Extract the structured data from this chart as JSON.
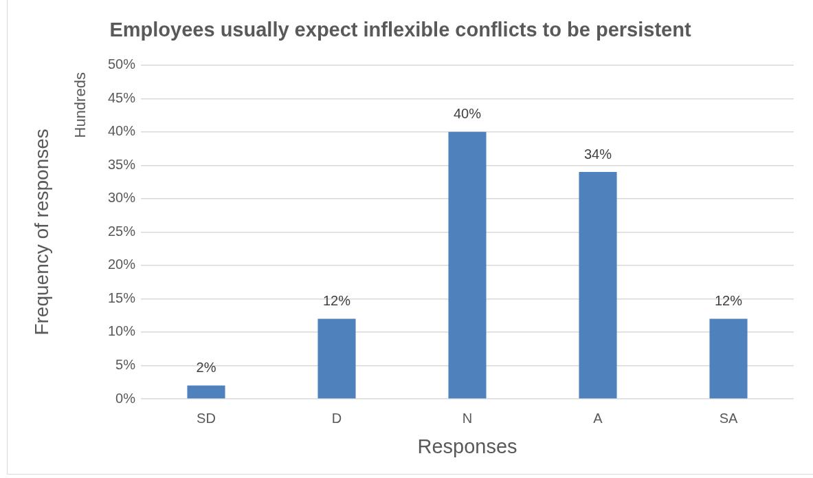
{
  "chart_data": {
    "type": "bar",
    "title": "Employees usually expect inflexible conflicts to be persistent",
    "xlabel": "Responses",
    "ylabel": "Frequency of responses",
    "annotations": [
      "Hundreds"
    ],
    "categories": [
      "SD",
      "D",
      "N",
      "A",
      "SA"
    ],
    "values": [
      2,
      12,
      40,
      34,
      12
    ],
    "color": "#4f81bd",
    "value_labels": [
      "2%",
      "12%",
      "40%",
      "34%",
      "12%"
    ],
    "ylim": [
      0,
      50
    ],
    "yticks": [
      {
        "value": 0,
        "label": "0%"
      },
      {
        "value": 5,
        "label": "5%"
      },
      {
        "value": 10,
        "label": "10%"
      },
      {
        "value": 15,
        "label": "15%"
      },
      {
        "value": 20,
        "label": "20%"
      },
      {
        "value": 25,
        "label": "25%"
      },
      {
        "value": 30,
        "label": "30%"
      },
      {
        "value": 35,
        "label": "35%"
      },
      {
        "value": 40,
        "label": "40%"
      },
      {
        "value": 45,
        "label": "45%"
      },
      {
        "value": 50,
        "label": "50%"
      }
    ],
    "grid": "y"
  }
}
